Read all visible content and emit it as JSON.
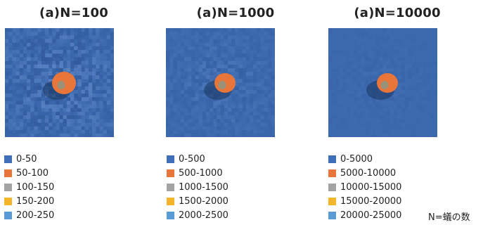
{
  "chart_data": [
    {
      "type": "heatmap",
      "title": "(a)N=100",
      "n": 100,
      "legend": [
        {
          "label": "0-50",
          "color": "#3f6fb8"
        },
        {
          "label": "50-100",
          "color": "#e8753a"
        },
        {
          "label": "100-150",
          "color": "#a3a3a3"
        },
        {
          "label": "150-200",
          "color": "#f5b52a"
        },
        {
          "label": "200-250",
          "color": "#5b9bd5"
        }
      ]
    },
    {
      "type": "heatmap",
      "title": "(a)N=1000",
      "n": 1000,
      "legend": [
        {
          "label": "0-500",
          "color": "#3f6fb8"
        },
        {
          "label": "500-1000",
          "color": "#e8753a"
        },
        {
          "label": "1000-1500",
          "color": "#a3a3a3"
        },
        {
          "label": "1500-2000",
          "color": "#f5b52a"
        },
        {
          "label": "2000-2500",
          "color": "#5b9bd5"
        }
      ]
    },
    {
      "type": "heatmap",
      "title": "(a)N=10000",
      "n": 10000,
      "legend": [
        {
          "label": "0-5000",
          "color": "#3f6fb8"
        },
        {
          "label": "5000-10000",
          "color": "#e8753a"
        },
        {
          "label": "10000-15000",
          "color": "#a3a3a3"
        },
        {
          "label": "15000-20000",
          "color": "#f5b52a"
        },
        {
          "label": "20000-25000",
          "color": "#5b9bd5"
        }
      ]
    }
  ],
  "footnote": "N=蟻の数"
}
